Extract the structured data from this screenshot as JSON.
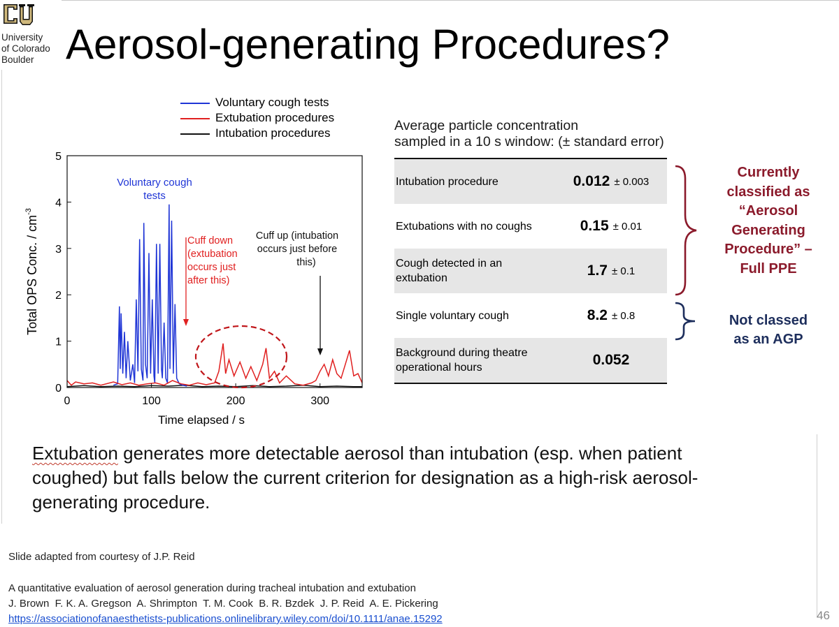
{
  "logo": {
    "line1": "University",
    "line2": "of Colorado",
    "line3": "Boulder"
  },
  "title": "Aerosol-generating Procedures?",
  "colors": {
    "voluntary": "#1f35d6",
    "extubation": "#e02020",
    "intubation": "#111111",
    "agp_note": "#8b1a2b",
    "not_agp_note": "#1d2e5c"
  },
  "chart_data": {
    "type": "line",
    "xlabel": "Time elapsed / s",
    "ylabel": "Total OPS Conc. / cm",
    "ylabel_exp": "-3",
    "xlim": [
      0,
      350
    ],
    "ylim": [
      0,
      5
    ],
    "x_ticks": [
      "0",
      "100",
      "200",
      "300"
    ],
    "y_ticks": [
      "0",
      "1",
      "2",
      "3",
      "4",
      "5"
    ],
    "legend": [
      "Voluntary cough tests",
      "Extubation procedures",
      "Intubation procedures"
    ],
    "series": [
      {
        "name": "Voluntary cough tests",
        "color": "#1f35d6",
        "x": [
          55,
          60,
          62,
          63,
          64,
          66,
          68,
          70,
          72,
          75,
          78,
          80,
          82,
          84,
          86,
          88,
          90,
          91,
          93,
          95,
          97,
          99,
          101,
          103,
          104,
          106,
          108,
          110,
          112,
          113,
          115,
          117,
          119,
          121,
          122,
          124,
          126,
          128,
          130,
          133,
          137,
          142
        ],
        "y": [
          0.05,
          0.08,
          1.75,
          0.4,
          1.6,
          0.3,
          1.2,
          0.2,
          1.0,
          0.15,
          0.5,
          0.1,
          1.9,
          0.35,
          3.2,
          0.4,
          0.15,
          3.55,
          0.5,
          0.2,
          2.9,
          0.3,
          1.9,
          0.25,
          0.1,
          3.1,
          0.3,
          3.1,
          0.4,
          0.2,
          1.4,
          0.2,
          0.1,
          3.95,
          0.4,
          3.6,
          0.3,
          1.8,
          0.2,
          0.08,
          0.05,
          0.03
        ]
      },
      {
        "name": "Extubation procedures",
        "color": "#e02020",
        "x": [
          0,
          5,
          10,
          20,
          30,
          40,
          55,
          65,
          75,
          85,
          95,
          105,
          115,
          125,
          135,
          145,
          155,
          165,
          175,
          180,
          185,
          188,
          192,
          198,
          205,
          212,
          218,
          225,
          232,
          236,
          240,
          246,
          252,
          260,
          270,
          280,
          290,
          295,
          300,
          305,
          310,
          315,
          320,
          325,
          330,
          335,
          340,
          345,
          350
        ],
        "y": [
          0.15,
          0.05,
          0.12,
          0.08,
          0.1,
          0.05,
          0.12,
          0.06,
          0.1,
          0.05,
          0.08,
          0.1,
          0.05,
          0.15,
          0.08,
          0.05,
          0.1,
          0.06,
          0.1,
          0.35,
          0.95,
          0.3,
          0.6,
          0.25,
          0.55,
          0.2,
          0.45,
          0.15,
          0.5,
          0.85,
          0.2,
          0.35,
          0.1,
          0.25,
          0.08,
          0.05,
          0.1,
          0.15,
          0.35,
          0.5,
          0.25,
          0.6,
          0.3,
          0.2,
          0.5,
          0.8,
          0.25,
          0.3,
          0.1
        ]
      },
      {
        "name": "Intubation procedures",
        "color": "#111111",
        "x": [
          0,
          20,
          40,
          60,
          80,
          100,
          120,
          140,
          160,
          180,
          200,
          220,
          240,
          260,
          280,
          300,
          320,
          340,
          350
        ],
        "y": [
          0.02,
          0.04,
          0.02,
          0.03,
          0.02,
          0.04,
          0.03,
          0.05,
          0.02,
          0.03,
          0.02,
          0.04,
          0.02,
          0.03,
          0.05,
          0.02,
          0.03,
          0.02,
          0.02
        ]
      }
    ],
    "annotations": {
      "voluntary": "Voluntary cough tests",
      "cuff_down": "Cuff down (extubation occurs just after this)",
      "cuff_up": "Cuff up (intubation occurs just before this)"
    }
  },
  "table": {
    "heading_line1": "Average particle concentration",
    "heading_line2": "sampled in a 10 s window: (± standard error)",
    "rows": [
      {
        "label": "Intubation procedure",
        "value": "0.012",
        "error": "± 0.003"
      },
      {
        "label": "Extubations with no coughs",
        "value": "0.15",
        "error": "± 0.01"
      },
      {
        "label": "Cough detected in an extubation",
        "value": "1.7",
        "error": "± 0.1"
      },
      {
        "label": "Single voluntary cough",
        "value": "8.2",
        "error": "± 0.8"
      },
      {
        "label": "Background during theatre operational hours",
        "value": "0.052",
        "error": ""
      }
    ]
  },
  "notes": {
    "agp_line1": "Currently",
    "agp_line2": "classified as",
    "agp_line3": "“Aerosol",
    "agp_line4": "Generating",
    "agp_line5": "Procedure” –",
    "agp_line6": "Full PPE",
    "not_agp_line1": "Not classed",
    "not_agp_line2": "as an AGP"
  },
  "conclusion": {
    "first_word": "Extubation",
    "rest": "generates more detectable aerosol than intubation (esp. when patient coughed) but falls below the current criterion for designation as a high-risk aerosol-generating procedure."
  },
  "credit": "Slide adapted from courtesy of J.P. Reid",
  "reference": {
    "title": "A quantitative evaluation of aerosol generation during tracheal intubation and extubation",
    "authors": "J. Brown  F. K. A. Gregson  A. Shrimpton  T. M. Cook  B. R. Bzdek  J. P. Reid  A. E. Pickering",
    "link": "https://associationofanaesthetists-publications.onlinelibrary.wiley.com/doi/10.1111/anae.15292"
  },
  "page_number": "46"
}
